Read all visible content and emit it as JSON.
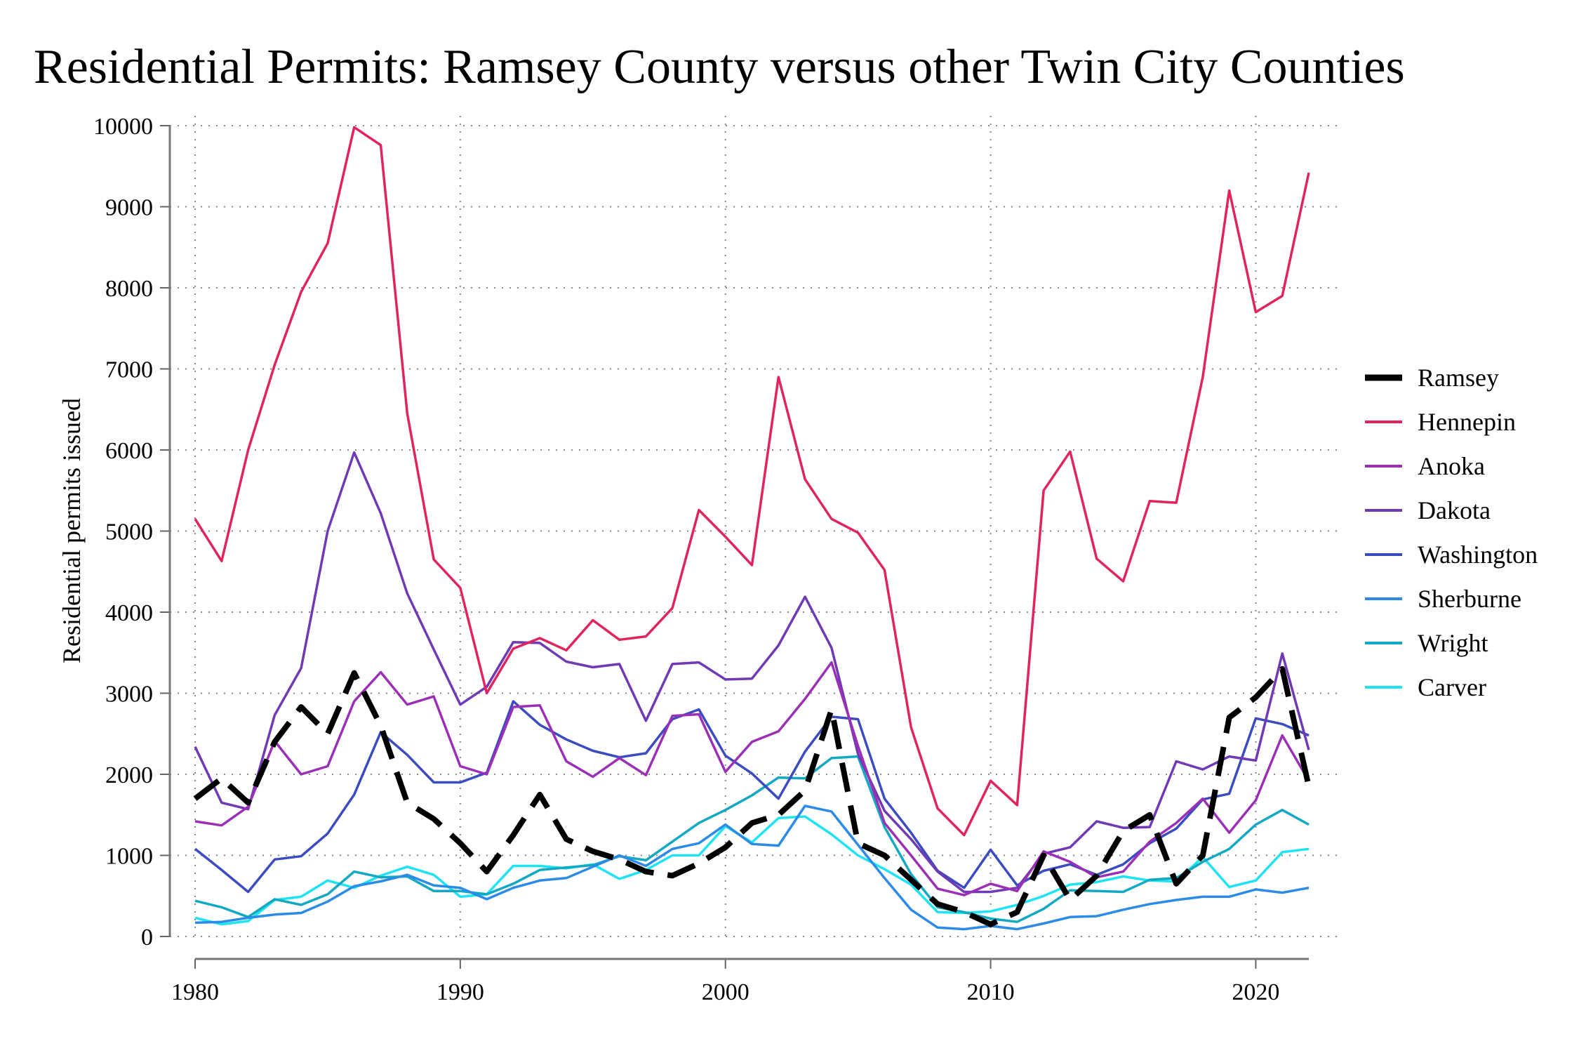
{
  "chart_data": {
    "type": "line",
    "title": "Residential Permits: Ramsey County versus other Twin City Counties",
    "xlabel": "",
    "ylabel": "Residential permits issued",
    "xlim": [
      1980,
      2022
    ],
    "ylim": [
      0,
      10000
    ],
    "xticks": [
      1980,
      1990,
      2000,
      2010,
      2020
    ],
    "yticks": [
      0,
      1000,
      2000,
      3000,
      4000,
      5000,
      6000,
      7000,
      8000,
      9000,
      10000
    ],
    "grid": "dotted",
    "legend_position": "right",
    "x": [
      1980,
      1981,
      1982,
      1983,
      1984,
      1985,
      1986,
      1987,
      1988,
      1989,
      1990,
      1991,
      1992,
      1993,
      1994,
      1995,
      1996,
      1997,
      1998,
      1999,
      2000,
      2001,
      2002,
      2003,
      2004,
      2005,
      2006,
      2007,
      2008,
      2009,
      2010,
      2011,
      2012,
      2013,
      2014,
      2015,
      2016,
      2017,
      2018,
      2019,
      2020,
      2021,
      2022
    ],
    "series": [
      {
        "name": "Ramsey",
        "color": "#000000",
        "dashed": true,
        "values": [
          1700,
          1950,
          1650,
          2400,
          2830,
          2500,
          3250,
          2600,
          1650,
          1450,
          1150,
          800,
          1250,
          1750,
          1200,
          1050,
          950,
          800,
          750,
          900,
          1100,
          1400,
          1500,
          1800,
          2800,
          1150,
          1000,
          700,
          400,
          300,
          150,
          300,
          1000,
          450,
          750,
          1300,
          1500,
          650,
          1000,
          2700,
          2950,
          3300,
          1850
        ]
      },
      {
        "name": "Hennepin",
        "color": "#e0245e",
        "values": [
          5150,
          4630,
          6000,
          7050,
          7950,
          8550,
          9980,
          9760,
          6450,
          4650,
          4300,
          3000,
          3550,
          3680,
          3530,
          3900,
          3660,
          3700,
          4050,
          5260,
          4930,
          4580,
          6900,
          5640,
          5150,
          4980,
          4520,
          2580,
          1580,
          1250,
          1920,
          1620,
          5500,
          5980,
          4660,
          4380,
          5370,
          5350,
          6900,
          9200,
          7700,
          7900,
          9420
        ]
      },
      {
        "name": "Anoka",
        "color": "#9b2fb5",
        "values": [
          1420,
          1370,
          1600,
          2410,
          2000,
          2100,
          2900,
          3260,
          2860,
          2960,
          2100,
          2000,
          2830,
          2850,
          2160,
          1970,
          2200,
          1990,
          2720,
          2740,
          2030,
          2400,
          2530,
          2930,
          3380,
          2350,
          1400,
          1000,
          590,
          510,
          650,
          560,
          1050,
          920,
          730,
          800,
          1170,
          1400,
          1700,
          1280,
          1680,
          2480,
          1920
        ]
      },
      {
        "name": "Dakota",
        "color": "#6f3ab3",
        "values": [
          2340,
          1650,
          1570,
          2730,
          3310,
          5000,
          5970,
          5220,
          4230,
          3540,
          2860,
          3080,
          3630,
          3620,
          3390,
          3320,
          3360,
          2660,
          3360,
          3380,
          3170,
          3180,
          3590,
          4190,
          3560,
          2250,
          1550,
          1200,
          800,
          550,
          550,
          600,
          1020,
          1100,
          1420,
          1340,
          1350,
          2160,
          2060,
          2220,
          2170,
          3490,
          2300
        ]
      },
      {
        "name": "Washington",
        "color": "#3b4bc0",
        "values": [
          1080,
          820,
          550,
          950,
          990,
          1270,
          1750,
          2520,
          2240,
          1900,
          1900,
          2020,
          2900,
          2610,
          2430,
          2290,
          2210,
          2260,
          2680,
          2800,
          2230,
          2010,
          1700,
          2280,
          2710,
          2680,
          1700,
          1280,
          810,
          600,
          1070,
          630,
          810,
          890,
          760,
          890,
          1150,
          1330,
          1690,
          1760,
          2690,
          2620,
          2480
        ]
      },
      {
        "name": "Sherburne",
        "color": "#2b8be6",
        "values": [
          170,
          180,
          230,
          270,
          290,
          430,
          620,
          680,
          760,
          630,
          600,
          460,
          600,
          690,
          720,
          860,
          1000,
          870,
          1080,
          1150,
          1380,
          1140,
          1120,
          1610,
          1540,
          1130,
          720,
          330,
          110,
          90,
          130,
          90,
          160,
          240,
          250,
          330,
          400,
          450,
          490,
          490,
          580,
          540,
          600
        ]
      },
      {
        "name": "Wright",
        "color": "#13a9c2",
        "values": [
          440,
          360,
          240,
          460,
          390,
          520,
          800,
          730,
          740,
          560,
          560,
          520,
          650,
          820,
          850,
          880,
          990,
          940,
          1170,
          1400,
          1560,
          1740,
          1960,
          1950,
          2200,
          2220,
          1350,
          770,
          360,
          300,
          220,
          180,
          340,
          570,
          560,
          550,
          700,
          720,
          920,
          1080,
          1380,
          1560,
          1380
        ]
      },
      {
        "name": "Carver",
        "color": "#1fe3f2",
        "values": [
          230,
          150,
          190,
          450,
          490,
          690,
          600,
          750,
          860,
          760,
          490,
          520,
          870,
          870,
          840,
          890,
          710,
          820,
          1000,
          1000,
          1360,
          1160,
          1460,
          1480,
          1260,
          1000,
          830,
          640,
          300,
          290,
          310,
          390,
          500,
          640,
          670,
          740,
          690,
          680,
          980,
          610,
          690,
          1040,
          1080
        ]
      }
    ]
  }
}
